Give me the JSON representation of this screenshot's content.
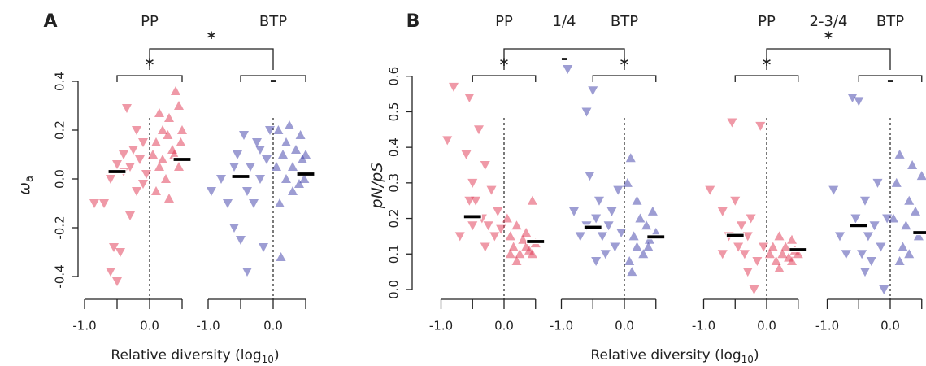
{
  "chart_data": [
    {
      "type": "scatter",
      "panel": "A",
      "ylabel": "ω",
      "ylabel_sub": "a",
      "xlabel": [
        "Relative diversity (log",
        "10",
        ")"
      ],
      "ylim": [
        -0.45,
        0.42
      ],
      "yticks": [
        -0.4,
        -0.2,
        {
          "value": 0,
          "label": "0.0"
        },
        0.2,
        0.4
      ],
      "subpanels": [
        {
          "comparison": "*",
          "groups": [
            {
              "name": "PP",
              "color": "#e0334f",
              "xlim": [
                -1,
                0.5
              ],
              "xticks": [
                {
                  "value": -1,
                  "label": "-1.0"
                },
                {
                  "value": 0,
                  "label": "0.0"
                }
              ],
              "xminor": [
                -0.5,
                0.5
              ],
              "comparison": "*",
              "series": [
                {
                  "marker": "down",
                  "x": [
                    -0.85,
                    -0.6,
                    -0.5,
                    -0.55,
                    -0.45,
                    -0.4,
                    -0.35,
                    -0.3,
                    -0.25,
                    -0.2,
                    -0.15,
                    -0.1,
                    -0.05,
                    -0.5,
                    -0.6,
                    -0.7,
                    -0.3,
                    -0.2,
                    -0.1,
                    -0.4
                  ],
                  "values": [
                    -0.1,
                    -0.38,
                    -0.42,
                    -0.28,
                    -0.3,
                    0.1,
                    0.29,
                    0.05,
                    0.12,
                    -0.05,
                    0.08,
                    0.15,
                    0.02,
                    0.06,
                    0.0,
                    -0.1,
                    -0.15,
                    0.2,
                    -0.02,
                    0.03
                  ]
                },
                {
                  "marker": "up",
                  "x": [
                    0.05,
                    0.1,
                    0.15,
                    0.2,
                    0.25,
                    0.3,
                    0.35,
                    0.4,
                    0.45,
                    0.5,
                    0.45,
                    0.3,
                    0.2,
                    0.1,
                    0.38,
                    0.48,
                    0.28,
                    0.15
                  ],
                  "values": [
                    0.1,
                    0.15,
                    0.05,
                    0.2,
                    0.0,
                    0.25,
                    0.12,
                    0.36,
                    0.3,
                    0.2,
                    0.05,
                    -0.08,
                    0.08,
                    -0.05,
                    0.1,
                    0.15,
                    0.18,
                    0.27
                  ]
                }
              ],
              "medians": {
                "x": [
                  -0.5,
                  0.5
                ],
                "values": [
                  0.03,
                  0.08
                ]
              }
            },
            {
              "name": "BTP",
              "color": "#3b3ba8",
              "xlim": [
                -1,
                0.5
              ],
              "xticks": [
                {
                  "value": -1,
                  "label": "-1.0"
                },
                {
                  "value": 0,
                  "label": "0.0"
                }
              ],
              "xminor": [
                -0.5,
                0.5
              ],
              "comparison": "-",
              "series": [
                {
                  "marker": "down",
                  "x": [
                    -0.95,
                    -0.8,
                    -0.7,
                    -0.6,
                    -0.55,
                    -0.5,
                    -0.45,
                    -0.4,
                    -0.35,
                    -0.3,
                    -0.25,
                    -0.2,
                    -0.15,
                    -0.1,
                    -0.05,
                    -0.6,
                    -0.4,
                    -0.2
                  ],
                  "values": [
                    -0.05,
                    0.0,
                    -0.1,
                    -0.2,
                    0.1,
                    -0.25,
                    0.18,
                    -0.38,
                    0.05,
                    -0.1,
                    0.15,
                    0.0,
                    -0.28,
                    0.08,
                    0.2,
                    0.05,
                    -0.05,
                    0.12
                  ]
                },
                {
                  "marker": "up",
                  "x": [
                    0.05,
                    0.1,
                    0.12,
                    0.15,
                    0.2,
                    0.25,
                    0.3,
                    0.35,
                    0.4,
                    0.45,
                    0.5,
                    0.2,
                    0.3,
                    0.42,
                    0.08,
                    0.48
                  ],
                  "values": [
                    0.05,
                    -0.1,
                    -0.32,
                    0.1,
                    0.0,
                    0.22,
                    0.05,
                    0.12,
                    -0.02,
                    0.08,
                    0.1,
                    0.15,
                    -0.05,
                    0.18,
                    0.2,
                    0.0
                  ]
                }
              ],
              "medians": {
                "x": [
                  -0.5,
                  0.5
                ],
                "values": [
                  0.01,
                  0.02
                ]
              }
            }
          ]
        }
      ]
    },
    {
      "type": "scatter",
      "panel": "B",
      "ylabel": "pN/pS",
      "xlabel": [
        "Relative diversity (log",
        "10",
        ")"
      ],
      "ylim": [
        -0.02,
        0.62
      ],
      "yticks": [
        {
          "value": 0,
          "label": "0.0"
        },
        0.1,
        0.2,
        0.3,
        0.4,
        0.5,
        0.6
      ],
      "subpanels": [
        {
          "title": "1/4",
          "comparison": "-",
          "groups": [
            {
              "name": "PP",
              "color": "#e0334f",
              "xlim": [
                -1,
                0.5
              ],
              "xticks": [
                {
                  "value": -1,
                  "label": "-1.0"
                },
                {
                  "value": 0,
                  "label": "0.0"
                }
              ],
              "xminor": [
                -0.5,
                0.5
              ],
              "comparison": "*",
              "series": [
                {
                  "marker": "down",
                  "x": [
                    -0.9,
                    -0.8,
                    -0.55,
                    -0.6,
                    -0.5,
                    -0.45,
                    -0.4,
                    -0.35,
                    -0.3,
                    -0.25,
                    -0.2,
                    -0.15,
                    -0.1,
                    -0.05,
                    -0.5,
                    -0.7,
                    -0.3,
                    -0.55
                  ],
                  "values": [
                    0.42,
                    0.57,
                    0.54,
                    0.38,
                    0.3,
                    0.25,
                    0.45,
                    0.2,
                    0.35,
                    0.18,
                    0.28,
                    0.15,
                    0.22,
                    0.17,
                    0.18,
                    0.15,
                    0.12,
                    0.25
                  ]
                },
                {
                  "marker": "up",
                  "x": [
                    0.05,
                    0.1,
                    0.15,
                    0.2,
                    0.25,
                    0.3,
                    0.35,
                    0.4,
                    0.45,
                    0.5,
                    0.1,
                    0.2,
                    0.35,
                    0.45
                  ],
                  "values": [
                    0.2,
                    0.15,
                    0.12,
                    0.18,
                    0.1,
                    0.14,
                    0.16,
                    0.11,
                    0.25,
                    0.13,
                    0.1,
                    0.08,
                    0.12,
                    0.1
                  ]
                }
              ],
              "medians": {
                "x": [
                  -0.5,
                  0.5
                ],
                "values": [
                  0.205,
                  0.135
                ]
              }
            },
            {
              "name": "BTP",
              "color": "#3b3ba8",
              "xlim": [
                -1,
                0.5
              ],
              "xticks": [
                {
                  "value": -1,
                  "label": "-1.0"
                },
                {
                  "value": 0,
                  "label": "0.0"
                }
              ],
              "xminor": [
                -0.5,
                0.5
              ],
              "comparison": "*",
              "series": [
                {
                  "marker": "down",
                  "x": [
                    -0.9,
                    -0.8,
                    -0.6,
                    -0.5,
                    -0.55,
                    -0.45,
                    -0.4,
                    -0.35,
                    -0.3,
                    -0.25,
                    -0.2,
                    -0.15,
                    -0.1,
                    -0.05,
                    -0.7,
                    -0.45,
                    -0.6
                  ],
                  "values": [
                    0.62,
                    0.22,
                    0.5,
                    0.56,
                    0.32,
                    0.2,
                    0.25,
                    0.15,
                    0.1,
                    0.18,
                    0.22,
                    0.12,
                    0.28,
                    0.16,
                    0.15,
                    0.08,
                    0.18
                  ]
                },
                {
                  "marker": "up",
                  "x": [
                    0.05,
                    0.1,
                    0.15,
                    0.2,
                    0.25,
                    0.3,
                    0.35,
                    0.4,
                    0.45,
                    0.5,
                    0.08,
                    0.2,
                    0.38,
                    0.12
                  ],
                  "values": [
                    0.3,
                    0.37,
                    0.15,
                    0.12,
                    0.2,
                    0.1,
                    0.18,
                    0.14,
                    0.22,
                    0.16,
                    0.08,
                    0.25,
                    0.12,
                    0.05
                  ]
                }
              ],
              "medians": {
                "x": [
                  -0.5,
                  0.5
                ],
                "values": [
                  0.175,
                  0.148
                ]
              }
            }
          ]
        },
        {
          "title": "2-3/4",
          "comparison": "*",
          "groups": [
            {
              "name": "PP",
              "color": "#e0334f",
              "xlim": [
                -1,
                0.5
              ],
              "xticks": [
                {
                  "value": -1,
                  "label": "-1.0"
                },
                {
                  "value": 0,
                  "label": "0.0"
                }
              ],
              "xminor": [
                -0.5,
                0.5
              ],
              "comparison": "*",
              "series": [
                {
                  "marker": "down",
                  "x": [
                    -0.9,
                    -0.7,
                    -0.55,
                    -0.6,
                    -0.5,
                    -0.45,
                    -0.4,
                    -0.35,
                    -0.3,
                    -0.25,
                    -0.2,
                    -0.15,
                    -0.1,
                    -0.05,
                    -0.7,
                    -0.3
                  ],
                  "values": [
                    0.28,
                    0.22,
                    0.47,
                    0.15,
                    0.25,
                    0.12,
                    0.18,
                    0.1,
                    0.05,
                    0.2,
                    0.0,
                    0.08,
                    0.46,
                    0.12,
                    0.1,
                    0.15
                  ]
                },
                {
                  "marker": "up",
                  "x": [
                    0.05,
                    0.1,
                    0.15,
                    0.2,
                    0.25,
                    0.3,
                    0.35,
                    0.4,
                    0.45,
                    0.5,
                    0.2,
                    0.4
                  ],
                  "values": [
                    0.1,
                    0.12,
                    0.08,
                    0.15,
                    0.1,
                    0.12,
                    0.09,
                    0.14,
                    0.11,
                    0.1,
                    0.06,
                    0.08
                  ]
                }
              ],
              "medians": {
                "x": [
                  -0.5,
                  0.5
                ],
                "values": [
                  0.152,
                  0.112
                ]
              }
            },
            {
              "name": "BTP",
              "color": "#3b3ba8",
              "xlim": [
                -1,
                0.5
              ],
              "xticks": [
                {
                  "value": -1,
                  "label": "-1.0"
                },
                {
                  "value": 0,
                  "label": "0.0"
                }
              ],
              "xminor": [
                -0.5,
                0.5
              ],
              "comparison": "-",
              "series": [
                {
                  "marker": "down",
                  "x": [
                    -0.9,
                    -0.8,
                    -0.6,
                    -0.5,
                    -0.55,
                    -0.45,
                    -0.4,
                    -0.35,
                    -0.3,
                    -0.25,
                    -0.2,
                    -0.15,
                    -0.1,
                    -0.05,
                    -0.7,
                    -0.4
                  ],
                  "values": [
                    0.28,
                    0.15,
                    0.54,
                    0.53,
                    0.2,
                    0.1,
                    0.25,
                    0.15,
                    0.08,
                    0.18,
                    0.3,
                    0.12,
                    0.0,
                    0.2,
                    0.1,
                    0.05
                  ]
                },
                {
                  "marker": "up",
                  "x": [
                    0.05,
                    0.1,
                    0.15,
                    0.2,
                    0.25,
                    0.3,
                    0.35,
                    0.4,
                    0.45,
                    0.5,
                    0.15,
                    0.3
                  ],
                  "values": [
                    0.2,
                    0.3,
                    0.38,
                    0.12,
                    0.18,
                    0.1,
                    0.35,
                    0.22,
                    0.15,
                    0.32,
                    0.08,
                    0.25
                  ]
                }
              ],
              "medians": {
                "x": [
                  -0.5,
                  0.5
                ],
                "values": [
                  0.18,
                  0.16
                ]
              }
            }
          ]
        }
      ]
    }
  ]
}
